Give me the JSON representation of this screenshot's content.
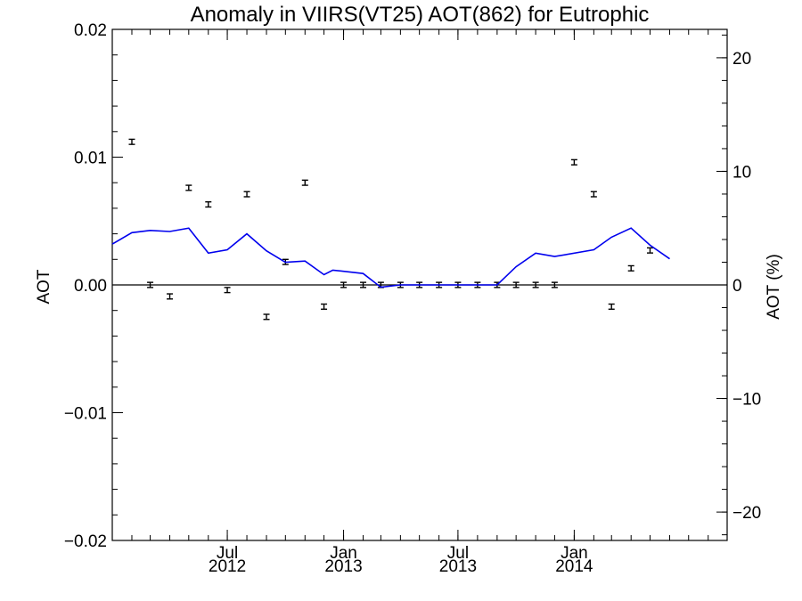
{
  "chart_data": {
    "type": "line",
    "title": "Anomaly in VIIRS(VT25) AOT(862) for Eutrophic",
    "ylabel": "AOT",
    "ylabel_right": "AOT (%)",
    "ylim": [
      -0.02,
      0.02
    ],
    "ylim_right": [
      -22.5,
      22.5
    ],
    "xlim": [
      "2012-01-01",
      "2014-08-31"
    ],
    "y_ticks": [
      {
        "value": -0.02,
        "label": "−0.02"
      },
      {
        "value": -0.01,
        "label": "−0.01"
      },
      {
        "value": 0.0,
        "label": "0.00"
      },
      {
        "value": 0.01,
        "label": "0.01"
      },
      {
        "value": 0.02,
        "label": "0.02"
      }
    ],
    "y_right_ticks": [
      {
        "value": -20,
        "label": "−20"
      },
      {
        "value": -10,
        "label": "−10"
      },
      {
        "value": 0,
        "label": "0"
      },
      {
        "value": 10,
        "label": "10"
      },
      {
        "value": 20,
        "label": "20"
      }
    ],
    "x_ticks": [
      {
        "date": "2012-07-01",
        "label": "Jul",
        "year": "2012"
      },
      {
        "date": "2013-01-01",
        "label": "Jan",
        "year": "2013"
      },
      {
        "date": "2013-07-01",
        "label": "Jul",
        "year": "2013"
      },
      {
        "date": "2014-01-01",
        "label": "Jan",
        "year": "2014"
      }
    ],
    "zero_line": true,
    "series": [
      {
        "kind": "points_with_errorbars",
        "axis": "left",
        "color": "#000000",
        "points": [
          {
            "date": "2012-02-01",
            "y": 0.0112,
            "err": 0.0002
          },
          {
            "date": "2012-03-01",
            "y": 0.0,
            "err": 0.0002
          },
          {
            "date": "2012-04-01",
            "y": -0.0009,
            "err": 0.0002
          },
          {
            "date": "2012-05-01",
            "y": 0.0076,
            "err": 0.0002
          },
          {
            "date": "2012-06-01",
            "y": 0.0063,
            "err": 0.0002
          },
          {
            "date": "2012-07-01",
            "y": -0.0004,
            "err": 0.0002
          },
          {
            "date": "2012-08-01",
            "y": 0.0071,
            "err": 0.0002
          },
          {
            "date": "2012-09-01",
            "y": -0.0025,
            "err": 0.0002
          },
          {
            "date": "2012-10-01",
            "y": 0.0018,
            "err": 0.0002
          },
          {
            "date": "2012-11-01",
            "y": 0.008,
            "err": 0.0002
          },
          {
            "date": "2012-12-01",
            "y": -0.0017,
            "err": 0.0002
          },
          {
            "date": "2013-01-01",
            "y": 0.0,
            "err": 0.0002
          },
          {
            "date": "2013-02-01",
            "y": 0.0,
            "err": 0.0002
          },
          {
            "date": "2013-03-01",
            "y": 0.0,
            "err": 0.0002
          },
          {
            "date": "2013-04-01",
            "y": 0.0,
            "err": 0.0002
          },
          {
            "date": "2013-05-01",
            "y": 0.0,
            "err": 0.0002
          },
          {
            "date": "2013-06-01",
            "y": 0.0,
            "err": 0.0002
          },
          {
            "date": "2013-07-01",
            "y": 0.0,
            "err": 0.0002
          },
          {
            "date": "2013-08-01",
            "y": 0.0,
            "err": 0.0002
          },
          {
            "date": "2013-09-01",
            "y": 0.0,
            "err": 0.0002
          },
          {
            "date": "2013-10-01",
            "y": 0.0,
            "err": 0.0002
          },
          {
            "date": "2013-11-01",
            "y": 0.0,
            "err": 0.0002
          },
          {
            "date": "2013-12-01",
            "y": 0.0,
            "err": 0.0002
          },
          {
            "date": "2014-01-01",
            "y": 0.0096,
            "err": 0.0002
          },
          {
            "date": "2014-02-01",
            "y": 0.0071,
            "err": 0.0002
          },
          {
            "date": "2014-03-01",
            "y": -0.0017,
            "err": 0.0002
          },
          {
            "date": "2014-04-01",
            "y": 0.0013,
            "err": 0.0002
          },
          {
            "date": "2014-05-01",
            "y": 0.0027,
            "err": 0.0002
          }
        ]
      },
      {
        "kind": "line",
        "axis": "right",
        "color": "#0000ee",
        "points": [
          {
            "date": "2012-01-01",
            "y": 3.6
          },
          {
            "date": "2012-02-01",
            "y": 4.6
          },
          {
            "date": "2012-03-01",
            "y": 4.8
          },
          {
            "date": "2012-04-01",
            "y": 4.7
          },
          {
            "date": "2012-05-01",
            "y": 5.0
          },
          {
            "date": "2012-06-01",
            "y": 2.8
          },
          {
            "date": "2012-07-01",
            "y": 3.1
          },
          {
            "date": "2012-08-01",
            "y": 4.5
          },
          {
            "date": "2012-09-01",
            "y": 3.0
          },
          {
            "date": "2012-10-01",
            "y": 2.0
          },
          {
            "date": "2012-11-01",
            "y": 2.1
          },
          {
            "date": "2012-12-01",
            "y": 0.9
          },
          {
            "date": "2012-12-15",
            "y": 1.3
          },
          {
            "date": "2013-02-01",
            "y": 1.0
          },
          {
            "date": "2013-03-01",
            "y": -0.2
          },
          {
            "date": "2013-04-01",
            "y": 0.0
          },
          {
            "date": "2013-05-01",
            "y": 0.0
          },
          {
            "date": "2013-06-01",
            "y": 0.0
          },
          {
            "date": "2013-07-01",
            "y": 0.0
          },
          {
            "date": "2013-08-01",
            "y": 0.0
          },
          {
            "date": "2013-09-01",
            "y": 0.0
          },
          {
            "date": "2013-10-01",
            "y": 1.6
          },
          {
            "date": "2013-11-01",
            "y": 2.8
          },
          {
            "date": "2013-12-01",
            "y": 2.5
          },
          {
            "date": "2014-02-01",
            "y": 3.1
          },
          {
            "date": "2014-03-01",
            "y": 4.2
          },
          {
            "date": "2014-04-01",
            "y": 5.0
          },
          {
            "date": "2014-05-01",
            "y": 3.5
          },
          {
            "date": "2014-06-01",
            "y": 2.3
          }
        ]
      }
    ]
  }
}
